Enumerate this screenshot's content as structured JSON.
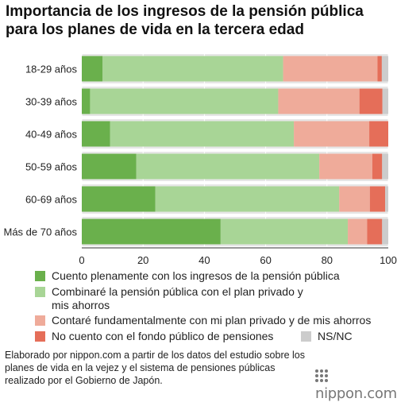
{
  "title": "Importancia de los ingresos de la pensión pública para los planes de vida en la tercera edad",
  "colors": {
    "full_public": "#6ab04c",
    "combine": "#a8d596",
    "private": "#efab9a",
    "no_public": "#e56e59",
    "nsnc": "#cccccc",
    "band": "#e6e6e6"
  },
  "chart_data": {
    "type": "bar",
    "orientation": "horizontal",
    "stacked": true,
    "categories": [
      "18-29 años",
      "30-39 años",
      "40-49 años",
      "50-59 años",
      "60-69 años",
      "Más de 70 años"
    ],
    "series": [
      {
        "name": "Cuento plenamente con los ingresos de la pensión pública",
        "color_key": "full_public",
        "values": [
          6.8,
          2.7,
          9.2,
          17.8,
          24.0,
          45.3
        ]
      },
      {
        "name": "Combinaré la pensión pública con el plan privado y mis ahorros",
        "color_key": "combine",
        "values": [
          58.9,
          61.4,
          60.0,
          59.7,
          60.0,
          41.5
        ]
      },
      {
        "name": "Contaré fundamentalmente con mi plan privado y de mis ahorros",
        "color_key": "private",
        "values": [
          30.8,
          26.5,
          24.6,
          17.3,
          10.0,
          6.3
        ]
      },
      {
        "name": "No cuento con el fondo público de pensiones",
        "color_key": "no_public",
        "values": [
          1.4,
          7.5,
          6.2,
          3.2,
          5.0,
          4.9
        ]
      },
      {
        "name": "NS/NC",
        "color_key": "nsnc",
        "values": [
          2.1,
          1.9,
          0.0,
          2.0,
          1.0,
          2.0
        ]
      }
    ],
    "xlim": [
      0,
      100
    ],
    "xticks": [
      "0",
      "20",
      "40",
      "60",
      "80",
      "100"
    ],
    "xunit": "(%)"
  },
  "legend": {
    "items": [
      {
        "label": "Cuento plenamente con los ingresos de la pensión pública",
        "color_key": "full_public"
      },
      {
        "label": "Combinaré la pensión pública con el plan privado y mis ahorros",
        "color_key": "combine"
      },
      {
        "label": "Contaré fundamentalmente con mi plan privado y de mis ahorros",
        "color_key": "private"
      },
      {
        "label": "No cuento con el fondo público de pensiones",
        "color_key": "no_public"
      },
      {
        "label": "NS/NC",
        "color_key": "nsnc"
      }
    ]
  },
  "source": "Elaborado por nippon.com a partir de los datos del estudio sobre los planes de vida en la vejez y el sistema de pensiones públicas realizado por el Gobierno de Japón.",
  "brand": "nippon.com"
}
